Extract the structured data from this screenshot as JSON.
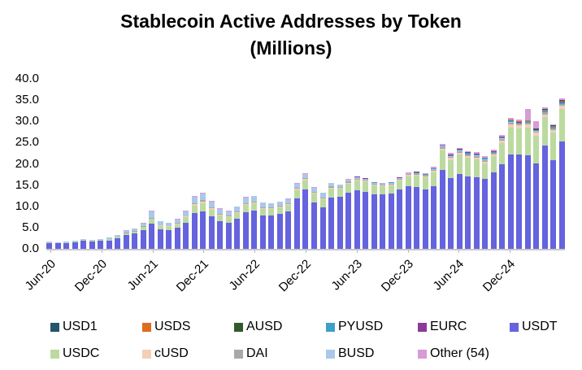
{
  "title_line1": "Stablecoin Active Addresses by Token",
  "title_line2": "(Millions)",
  "chart_data": {
    "type": "bar",
    "stacked": true,
    "title": "Stablecoin Active Addresses by Token (Millions)",
    "xlabel": "",
    "ylabel": "",
    "ylim": [
      0,
      40
    ],
    "y_ticks": [
      "40.0",
      "35.0",
      "30.0",
      "25.0",
      "20.0",
      "15.0",
      "10.0",
      "5.0",
      "0.0"
    ],
    "y_tick_values": [
      40,
      35,
      30,
      25,
      20,
      15,
      10,
      5,
      0
    ],
    "grid": false,
    "legend_position": "bottom",
    "categories": [
      "Jun-20",
      "Jul-20",
      "Aug-20",
      "Sep-20",
      "Oct-20",
      "Nov-20",
      "Dec-20",
      "Jan-21",
      "Feb-21",
      "Mar-21",
      "Apr-21",
      "May-21",
      "Jun-21",
      "Jul-21",
      "Aug-21",
      "Sep-21",
      "Oct-21",
      "Nov-21",
      "Dec-21",
      "Jan-22",
      "Feb-22",
      "Mar-22",
      "Apr-22",
      "May-22",
      "Jun-22",
      "Jul-22",
      "Aug-22",
      "Sep-22",
      "Oct-22",
      "Nov-22",
      "Dec-22",
      "Jan-23",
      "Feb-23",
      "Mar-23",
      "Apr-23",
      "May-23",
      "Jun-23",
      "Jul-23",
      "Aug-23",
      "Sep-23",
      "Oct-23",
      "Nov-23",
      "Dec-23",
      "Jan-24",
      "Feb-24",
      "Mar-24",
      "Apr-24",
      "May-24",
      "Jun-24",
      "Jul-24",
      "Aug-24",
      "Sep-24",
      "Oct-24",
      "Nov-24",
      "Dec-24",
      "Jan-25",
      "Feb-25",
      "Mar-25",
      "Apr-25",
      "May-25",
      "Jun-25"
    ],
    "x_label_indices": [
      0,
      6,
      12,
      18,
      24,
      30,
      36,
      42,
      48,
      54
    ],
    "x_tick_labels": [
      "Jun-20",
      "Dec-20",
      "Jun-21",
      "Dec-21",
      "Jun-22",
      "Dec-22",
      "Jun-23",
      "Dec-23",
      "Jun-24",
      "Dec-24"
    ],
    "series": [
      {
        "name": "USDT",
        "color": "#6563de",
        "values": [
          1.4,
          1.25,
          1.4,
          1.55,
          1.85,
          1.7,
          1.85,
          2.0,
          2.5,
          3.3,
          3.6,
          4.4,
          5.9,
          4.6,
          4.4,
          4.9,
          6.2,
          8.4,
          8.9,
          7.6,
          6.5,
          6.2,
          7.0,
          8.6,
          9.0,
          7.9,
          7.9,
          8.2,
          8.8,
          11.8,
          13.9,
          11.0,
          9.8,
          12.0,
          12.3,
          13.3,
          13.7,
          13.4,
          12.9,
          12.8,
          13.1,
          14.0,
          14.7,
          14.5,
          14.0,
          14.8,
          18.5,
          16.6,
          17.7,
          17.1,
          16.8,
          16.4,
          18.0,
          19.9,
          22.2,
          22.2,
          22.0,
          20.1,
          24.4,
          20.9,
          25.3
        ]
      },
      {
        "name": "USDC",
        "color": "#bcdaa0",
        "values": [
          0.1,
          0.1,
          0.15,
          0.15,
          0.2,
          0.2,
          0.2,
          0.25,
          0.3,
          0.4,
          0.5,
          0.7,
          1.1,
          0.8,
          0.8,
          0.9,
          1.2,
          1.7,
          1.9,
          1.6,
          1.3,
          1.2,
          1.4,
          1.7,
          1.7,
          1.5,
          1.4,
          1.5,
          1.5,
          2.0,
          2.2,
          2.0,
          1.9,
          2.2,
          1.9,
          2.1,
          2.4,
          2.4,
          2.1,
          1.9,
          1.9,
          2.1,
          2.4,
          2.7,
          2.8,
          3.2,
          4.6,
          4.3,
          4.5,
          4.3,
          4.3,
          3.7,
          3.8,
          5.0,
          6.3,
          6.2,
          6.6,
          6.6,
          6.6,
          6.5,
          7.6
        ]
      },
      {
        "name": "cUSD",
        "color": "#f4cfb5",
        "values": [
          0,
          0,
          0,
          0,
          0,
          0,
          0,
          0,
          0,
          0,
          0,
          0.1,
          0.15,
          0.1,
          0.1,
          0.15,
          0.2,
          0.4,
          0.4,
          0.3,
          0.25,
          0.25,
          0.25,
          0.3,
          0.3,
          0.25,
          0.25,
          0.25,
          0.25,
          0.3,
          0.3,
          0.25,
          0.25,
          0.25,
          0.2,
          0.2,
          0.2,
          0.2,
          0.2,
          0.2,
          0.2,
          0.2,
          0.25,
          0.3,
          0.3,
          0.35,
          0.5,
          0.45,
          0.45,
          0.4,
          0.4,
          0.35,
          0.35,
          0.5,
          0.7,
          0.7,
          0.7,
          0.6,
          0.6,
          0.5,
          0.7
        ]
      },
      {
        "name": "DAI",
        "color": "#a9a9a9",
        "values": [
          0.1,
          0.05,
          0.05,
          0.1,
          0.1,
          0.1,
          0.1,
          0.1,
          0.1,
          0.15,
          0.15,
          0.2,
          0.15,
          0.1,
          0.1,
          0.15,
          0.15,
          0.2,
          0.2,
          0.2,
          0.15,
          0.15,
          0.15,
          0.2,
          0.2,
          0.15,
          0.15,
          0.15,
          0.15,
          0.2,
          0.2,
          0.2,
          0.2,
          0.25,
          0.2,
          0.2,
          0.25,
          0.2,
          0.2,
          0.2,
          0.2,
          0.2,
          0.25,
          0.3,
          0.3,
          0.3,
          0.35,
          0.35,
          0.35,
          0.35,
          0.35,
          0.5,
          0.35,
          0.45,
          0.5,
          0.4,
          0.4,
          0.35,
          0.5,
          0.45,
          0.5
        ]
      },
      {
        "name": "BUSD",
        "color": "#aac8ea",
        "values": [
          0.2,
          0.2,
          0.2,
          0.2,
          0.25,
          0.2,
          0.25,
          0.25,
          0.4,
          0.45,
          0.55,
          0.6,
          1.6,
          0.85,
          0.75,
          0.85,
          1.15,
          1.6,
          1.7,
          1.4,
          1.2,
          1.1,
          1.1,
          1.3,
          1.2,
          1.1,
          1.0,
          1.0,
          1.0,
          1.1,
          1.1,
          1.0,
          1.0,
          0.8,
          0.5,
          0.4,
          0.35,
          0.3,
          0.2,
          0.2,
          0.15,
          0.15,
          0.15,
          0.1,
          0.1,
          0.1,
          0.1,
          0.1,
          0.1,
          0.1,
          0.1,
          0.1,
          0.1,
          0.1,
          0.1,
          0.05,
          0.05,
          0.05,
          0.05,
          0.05,
          0.05
        ]
      },
      {
        "name": "PYUSD",
        "color": "#3f9fc9",
        "values": [
          0,
          0,
          0,
          0,
          0,
          0,
          0,
          0,
          0,
          0,
          0,
          0,
          0,
          0,
          0,
          0,
          0,
          0,
          0,
          0,
          0,
          0,
          0,
          0,
          0,
          0,
          0,
          0,
          0,
          0,
          0,
          0,
          0,
          0,
          0,
          0,
          0,
          0,
          0.05,
          0.05,
          0.1,
          0.1,
          0.1,
          0.15,
          0.15,
          0.2,
          0.2,
          0.3,
          0.3,
          0.35,
          0.35,
          0.3,
          0.25,
          0.35,
          0.4,
          0.2,
          0.25,
          0.25,
          0.3,
          0.25,
          0.3
        ]
      },
      {
        "name": "EURC",
        "color": "#8b3a97",
        "values": [
          0,
          0,
          0,
          0,
          0,
          0,
          0,
          0,
          0,
          0,
          0,
          0,
          0,
          0,
          0,
          0,
          0,
          0,
          0,
          0,
          0,
          0,
          0,
          0,
          0,
          0,
          0,
          0,
          0,
          0,
          0,
          0,
          0,
          0,
          0,
          0.1,
          0.1,
          0.1,
          0.05,
          0.05,
          0.05,
          0.05,
          0.05,
          0.05,
          0.05,
          0.1,
          0.1,
          0.1,
          0.1,
          0.1,
          0.1,
          0.1,
          0.1,
          0.1,
          0.1,
          0.1,
          0.1,
          0.1,
          0.1,
          0.1,
          0.15
        ]
      },
      {
        "name": "USDS",
        "color": "#dd6b20",
        "values": [
          0,
          0,
          0,
          0,
          0,
          0,
          0,
          0,
          0,
          0,
          0,
          0,
          0,
          0,
          0,
          0,
          0,
          0,
          0,
          0,
          0,
          0,
          0,
          0,
          0,
          0,
          0,
          0,
          0,
          0,
          0,
          0,
          0,
          0,
          0,
          0,
          0,
          0,
          0,
          0,
          0,
          0,
          0,
          0,
          0,
          0,
          0,
          0,
          0,
          0,
          0,
          0.05,
          0.1,
          0.1,
          0.15,
          0.15,
          0.2,
          0.15,
          0.2,
          0.2,
          0.25
        ]
      },
      {
        "name": "AUSD",
        "color": "#2f5b2a",
        "values": [
          0,
          0,
          0,
          0,
          0,
          0,
          0,
          0,
          0,
          0,
          0,
          0,
          0,
          0,
          0,
          0,
          0,
          0,
          0,
          0,
          0,
          0,
          0,
          0,
          0,
          0,
          0,
          0,
          0,
          0,
          0,
          0,
          0,
          0,
          0,
          0,
          0,
          0,
          0,
          0,
          0,
          0,
          0,
          0,
          0,
          0,
          0,
          0,
          0,
          0,
          0,
          0,
          0,
          0,
          0.02,
          0.03,
          0.05,
          0.05,
          0.05,
          0.05,
          0.05
        ]
      },
      {
        "name": "USD1",
        "color": "#21566b",
        "values": [
          0,
          0,
          0,
          0,
          0,
          0,
          0,
          0,
          0,
          0,
          0,
          0,
          0,
          0,
          0,
          0,
          0,
          0,
          0,
          0,
          0,
          0,
          0,
          0,
          0,
          0,
          0,
          0,
          0,
          0,
          0,
          0,
          0,
          0,
          0,
          0,
          0,
          0,
          0,
          0,
          0,
          0,
          0,
          0,
          0,
          0,
          0,
          0,
          0,
          0,
          0,
          0,
          0,
          0,
          0,
          0,
          0,
          0,
          0.05,
          0.05,
          0.05
        ]
      },
      {
        "name": "Other (54)",
        "color": "#d79bd5",
        "values": [
          0,
          0,
          0,
          0,
          0,
          0,
          0,
          0,
          0,
          0.05,
          0.05,
          0.1,
          0.1,
          0.05,
          0.05,
          0.05,
          0.1,
          0.2,
          0.2,
          0.2,
          0.1,
          0.1,
          0.1,
          0.1,
          0.1,
          0.1,
          0.1,
          0.1,
          0.1,
          0.1,
          0.1,
          0.05,
          0.05,
          0.1,
          0.1,
          0.1,
          0.1,
          0.1,
          0.1,
          0.1,
          0.1,
          0.1,
          0.1,
          0.15,
          0.15,
          0.2,
          0.3,
          0.3,
          0.3,
          0.35,
          0.35,
          0.3,
          0.25,
          0.35,
          0.45,
          0.5,
          2.6,
          1.9,
          0.4,
          0.3,
          0.4
        ]
      }
    ]
  },
  "legend": {
    "rows": [
      [
        {
          "label": "USD1",
          "color": "#21566b"
        },
        {
          "label": "USDS",
          "color": "#dd6b20"
        },
        {
          "label": "AUSD",
          "color": "#2f5b2a"
        },
        {
          "label": "PYUSD",
          "color": "#3f9fc9"
        },
        {
          "label": "EURC",
          "color": "#8b3a97"
        },
        {
          "label": "USDT",
          "color": "#6563de"
        }
      ],
      [
        {
          "label": "USDC",
          "color": "#bcdaa0"
        },
        {
          "label": "cUSD",
          "color": "#f4cfb5"
        },
        {
          "label": "DAI",
          "color": "#a9a9a9"
        },
        {
          "label": "BUSD",
          "color": "#aac8ea"
        },
        {
          "label": "Other (54)",
          "color": "#d79bd5"
        }
      ]
    ]
  },
  "layout_colors": {
    "axis_line": "#c9c9c9",
    "background": "#ffffff",
    "text": "#000000"
  }
}
